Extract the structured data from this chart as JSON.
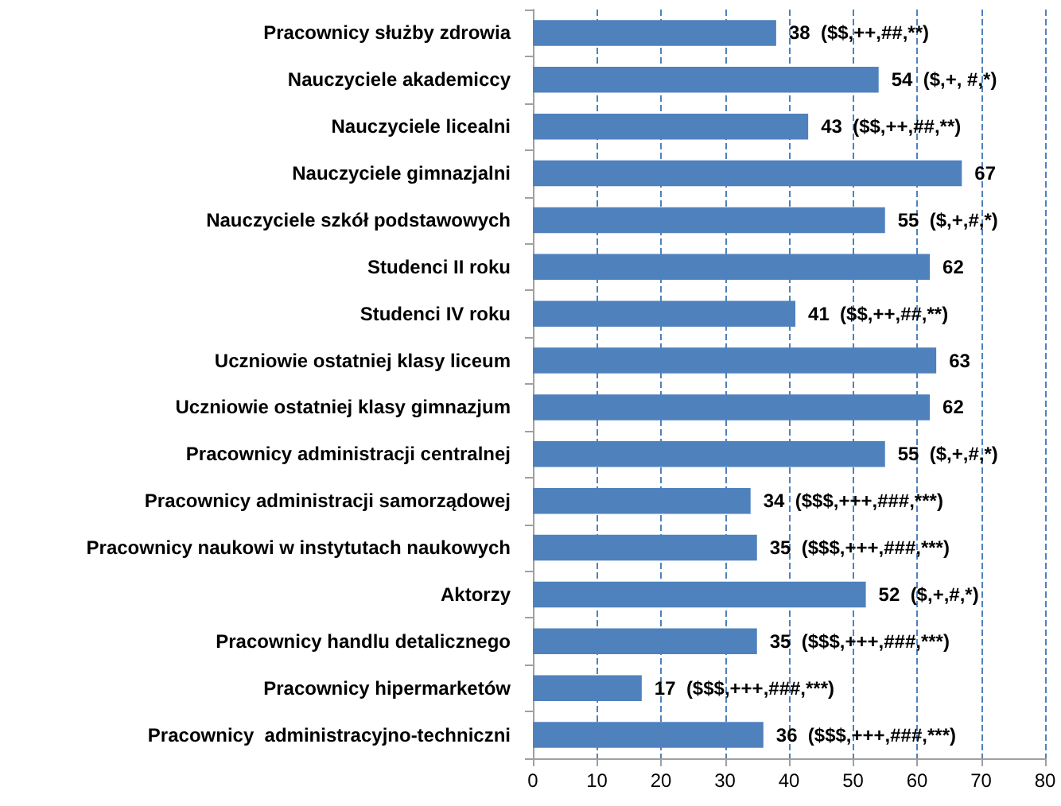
{
  "chart_data": {
    "type": "bar",
    "orientation": "horizontal",
    "categories": [
      "Pracownicy służby zdrowia",
      "Nauczyciele akademiccy",
      "Nauczyciele licealni",
      "Nauczyciele gimnazjalni",
      "Nauczyciele szkół podstawowych",
      "Studenci II roku",
      "Studenci IV roku",
      "Uczniowie ostatniej klasy liceum",
      "Uczniowie ostatniej klasy gimnazjum",
      "Pracownicy administracji centralnej",
      "Pracownicy administracji samorządowej",
      "Pracownicy naukowi w instytutach naukowych",
      "Aktorzy",
      "Pracownicy handlu detalicznego",
      "Pracownicy hipermarketów",
      "Pracownicy  administracyjno-techniczni"
    ],
    "values": [
      38,
      54,
      43,
      67,
      55,
      62,
      41,
      63,
      62,
      55,
      34,
      35,
      52,
      35,
      17,
      36
    ],
    "value_labels": [
      "38  ($$,++,##,**)",
      "54  ($,+, #,*)",
      "43  ($$,++,##,**)",
      "67",
      "55  ($,+,#,*)",
      "62",
      "41  ($$,++,##,**)",
      "63",
      "62",
      "55  ($,+,#,*)",
      "34  ($$$,+++,###,***)",
      "35  ($$$,+++,###,***)",
      "52  ($,+,#,*)",
      "35  ($$$,+++,###,***)",
      "17  ($$$,+++,###,***)",
      "36  ($$$,+++,###,***)"
    ],
    "color": "#4f81bd",
    "xlim": [
      0,
      80
    ],
    "xticks": [
      0,
      10,
      20,
      30,
      40,
      50,
      60,
      70,
      80
    ],
    "grid": "x"
  }
}
